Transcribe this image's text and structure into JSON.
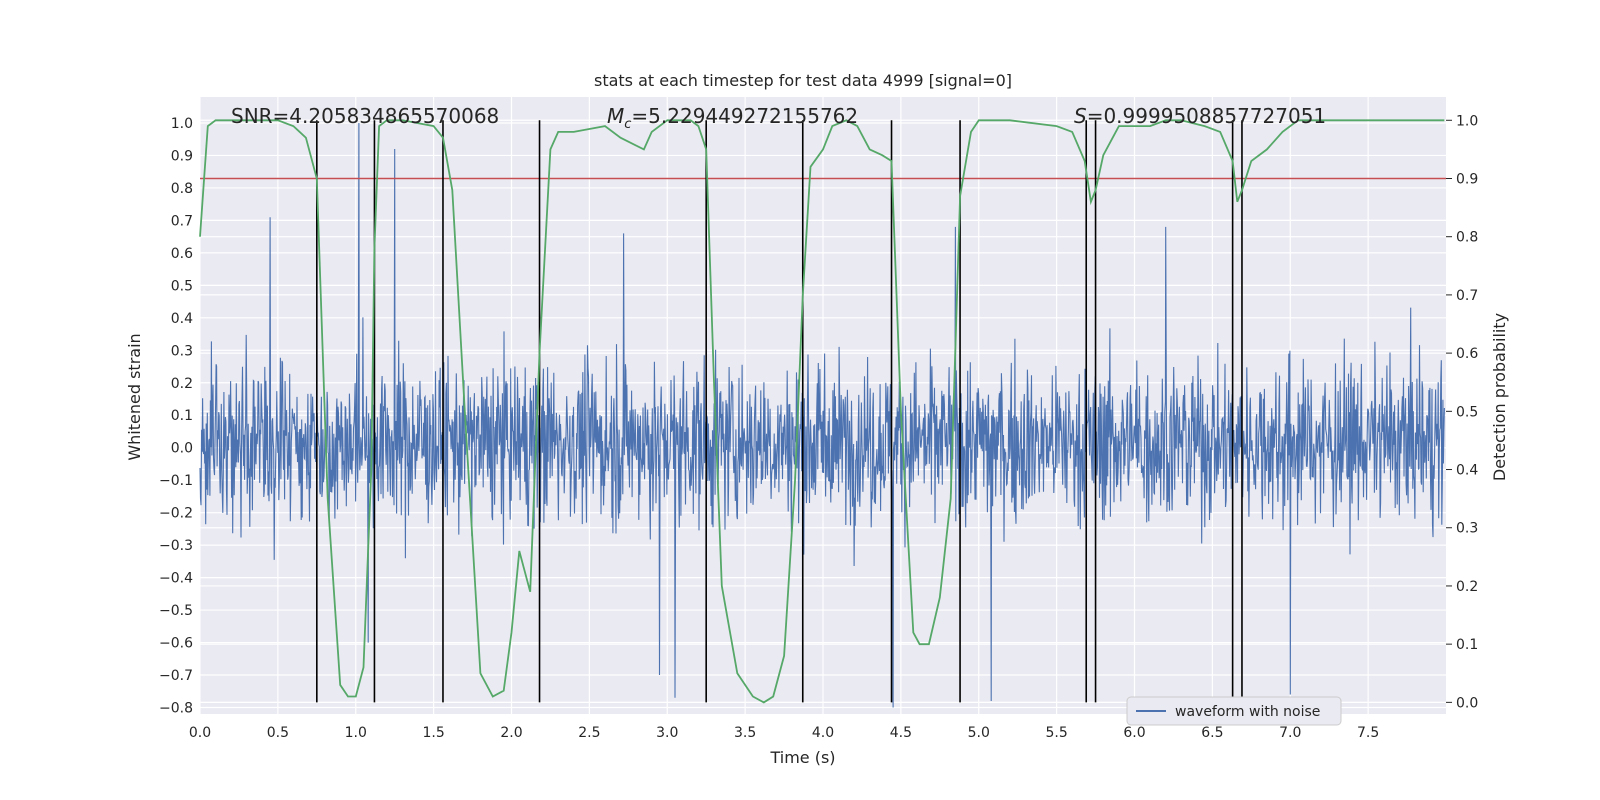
{
  "chart_data": {
    "type": "line",
    "title": "stats at each timestep for test data 4999 [signal=0]",
    "xlabel": "Time (s)",
    "ylabel_left": "Whitened strain",
    "ylabel_right": "Detection probability",
    "xlim": [
      0.0,
      8.0
    ],
    "ylim_left": [
      -0.82,
      1.08
    ],
    "ylim_right": [
      -0.02,
      1.04
    ],
    "x_ticks": [
      "0.0",
      "0.5",
      "1.0",
      "1.5",
      "2.0",
      "2.5",
      "3.0",
      "3.5",
      "4.0",
      "4.5",
      "5.0",
      "5.5",
      "6.0",
      "6.5",
      "7.0",
      "7.5"
    ],
    "y_ticks_left": [
      "1.0",
      "0.9",
      "0.8",
      "0.7",
      "0.6",
      "0.5",
      "0.4",
      "0.3",
      "0.2",
      "0.1",
      "0.0",
      "−0.1",
      "−0.2",
      "−0.3",
      "−0.4",
      "−0.5",
      "−0.6",
      "−0.7",
      "−0.8"
    ],
    "y_ticks_right": [
      "1.0",
      "0.9",
      "0.8",
      "0.7",
      "0.6",
      "0.5",
      "0.4",
      "0.3",
      "0.2",
      "0.1",
      "0.0"
    ],
    "grid": true,
    "legend": {
      "entries": [
        "waveform with noise"
      ],
      "placement": "lower right"
    },
    "annotations": {
      "snr": "SNR=4.205834865570068",
      "mc_symbol": "M",
      "mc_sub": "c",
      "mc_value": "=5.229449272155762",
      "s_symbol": "S",
      "s_value": "=0.9999508857727051"
    },
    "threshold": {
      "value": 0.9,
      "axis": "right",
      "color": "#c44e52"
    },
    "crossings": [
      0.75,
      1.12,
      1.56,
      2.18,
      3.25,
      3.87,
      4.44,
      4.88,
      5.69,
      5.75,
      6.63,
      6.69
    ],
    "series": [
      {
        "name": "waveform with noise",
        "axis": "left",
        "color": "#4c72b0",
        "style": "noise",
        "typical_envelope": [
          -0.35,
          0.38
        ],
        "peaks": [
          {
            "x": 1.02,
            "y": 1.0
          },
          {
            "x": 1.25,
            "y": 0.92
          },
          {
            "x": 0.45,
            "y": 0.71
          },
          {
            "x": 2.72,
            "y": 0.66
          },
          {
            "x": 4.85,
            "y": 0.68
          },
          {
            "x": 6.2,
            "y": 0.68
          },
          {
            "x": 5.08,
            "y": -0.78
          },
          {
            "x": 3.05,
            "y": -0.77
          },
          {
            "x": 7.0,
            "y": -0.76
          },
          {
            "x": 4.45,
            "y": -0.8
          },
          {
            "x": 2.95,
            "y": -0.7
          },
          {
            "x": 1.08,
            "y": -0.6
          }
        ]
      },
      {
        "name": "",
        "axis": "right",
        "color": "#55a868",
        "style": "line",
        "x": [
          0.0,
          0.05,
          0.1,
          0.2,
          0.5,
          0.6,
          0.68,
          0.75,
          0.82,
          0.9,
          0.95,
          1.0,
          1.05,
          1.1,
          1.12,
          1.15,
          1.2,
          1.3,
          1.5,
          1.56,
          1.62,
          1.7,
          1.8,
          1.88,
          1.95,
          2.0,
          2.05,
          2.12,
          2.18,
          2.25,
          2.3,
          2.4,
          2.6,
          2.7,
          2.85,
          2.9,
          3.0,
          3.15,
          3.2,
          3.25,
          3.3,
          3.35,
          3.45,
          3.55,
          3.62,
          3.68,
          3.75,
          3.82,
          3.87,
          3.92,
          4.0,
          4.06,
          4.15,
          4.22,
          4.3,
          4.38,
          4.44,
          4.5,
          4.58,
          4.62,
          4.68,
          4.75,
          4.82,
          4.88,
          4.95,
          5.0,
          5.2,
          5.5,
          5.6,
          5.68,
          5.72,
          5.75,
          5.8,
          5.9,
          6.0,
          6.1,
          6.2,
          6.3,
          6.45,
          6.55,
          6.63,
          6.66,
          6.69,
          6.75,
          6.85,
          6.95,
          7.05,
          7.2,
          7.99
        ],
        "y": [
          0.8,
          0.99,
          1.0,
          1.0,
          1.0,
          0.99,
          0.97,
          0.9,
          0.35,
          0.03,
          0.01,
          0.01,
          0.06,
          0.4,
          0.78,
          0.99,
          1.0,
          1.0,
          0.99,
          0.97,
          0.88,
          0.5,
          0.05,
          0.01,
          0.02,
          0.12,
          0.26,
          0.19,
          0.6,
          0.95,
          0.98,
          0.98,
          0.99,
          0.97,
          0.95,
          0.98,
          1.0,
          1.0,
          0.99,
          0.95,
          0.55,
          0.2,
          0.05,
          0.01,
          0.0,
          0.01,
          0.08,
          0.38,
          0.7,
          0.92,
          0.95,
          0.99,
          1.0,
          0.99,
          0.95,
          0.94,
          0.93,
          0.5,
          0.12,
          0.1,
          0.1,
          0.18,
          0.35,
          0.87,
          0.98,
          1.0,
          1.0,
          0.99,
          0.98,
          0.93,
          0.86,
          0.88,
          0.94,
          0.99,
          0.99,
          0.99,
          1.0,
          1.0,
          0.99,
          0.98,
          0.93,
          0.86,
          0.88,
          0.93,
          0.95,
          0.98,
          1.0,
          1.0,
          1.0
        ]
      }
    ]
  }
}
